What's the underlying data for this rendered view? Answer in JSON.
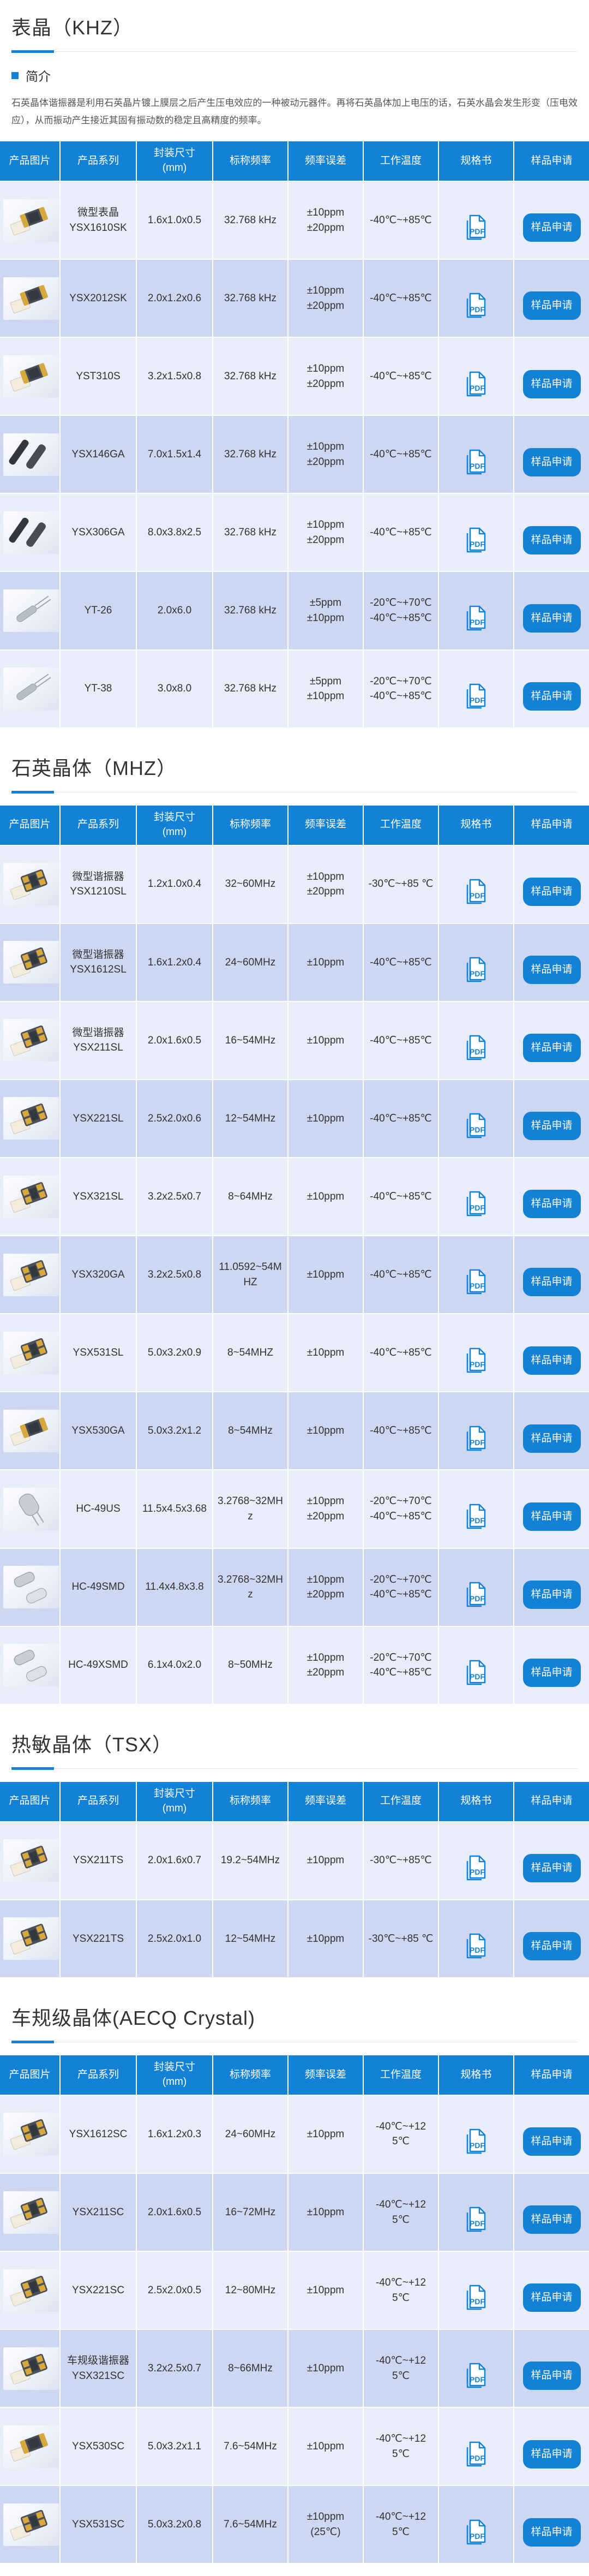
{
  "theme": {
    "accent": "#1381d6",
    "row_light": "#e9edf9",
    "row_dark": "#cdd7f1",
    "header_text_color": "#ffffff"
  },
  "pdf_label": "PDF",
  "sample_button_label": "样品申请",
  "table_headers": [
    "产品图片",
    "产品系列",
    "封装尺寸\n(mm)",
    "标称频率",
    "频率误差",
    "工作温度",
    "规格书",
    "样品申请"
  ],
  "sections": [
    {
      "title": "表晶（KHZ）",
      "intro": {
        "label": "简介",
        "text": "石英晶体谐振器是利用石英晶片镀上膜层之后产生压电效应的一种被动元器件。再将石英晶体加上电压的话，石英水晶会发生形变（压电效应），从而振动产生接近其固有振动数的稳定且高精度的频率。"
      },
      "rows": [
        {
          "photo": "smd2",
          "series": "微型表晶\nYSX1610SK",
          "size": "1.6x1.0x0.5",
          "freq": "32.768 kHz",
          "tol": "±10ppm\n±20ppm",
          "temp": "-40℃~+85℃"
        },
        {
          "photo": "smd2",
          "series": "YSX2012SK",
          "size": "2.0x1.2x0.6",
          "freq": "32.768 kHz",
          "tol": "±10ppm\n±20ppm",
          "temp": "-40℃~+85℃"
        },
        {
          "photo": "smd2",
          "series": "YST310S",
          "size": "3.2x1.5x0.8",
          "freq": "32.768 kHz",
          "tol": "±10ppm\n±20ppm",
          "temp": "-40℃~+85℃"
        },
        {
          "photo": "bars",
          "series": "YSX146GA",
          "size": "7.0x1.5x1.4",
          "freq": "32.768 kHz",
          "tol": "±10ppm\n±20ppm",
          "temp": "-40℃~+85℃"
        },
        {
          "photo": "bars",
          "series": "YSX306GA",
          "size": "8.0x3.8x2.5",
          "freq": "32.768 kHz",
          "tol": "±10ppm\n±20ppm",
          "temp": "-40℃~+85℃"
        },
        {
          "photo": "cyl",
          "series": "YT-26",
          "size": "2.0x6.0",
          "freq": "32.768 kHz",
          "tol": "±5ppm\n±10ppm",
          "temp": "-20℃~+70℃\n-40℃~+85℃"
        },
        {
          "photo": "cyl",
          "series": "YT-38",
          "size": "3.0x8.0",
          "freq": "32.768 kHz",
          "tol": "±5ppm\n±10ppm",
          "temp": "-20℃~+70℃\n-40℃~+85℃"
        }
      ]
    },
    {
      "title": "石英晶体（MHZ）",
      "rows": [
        {
          "photo": "smd4",
          "series": "微型谐振器\nYSX1210SL",
          "size": "1.2x1.0x0.4",
          "freq": "32~60MHz",
          "tol": "±10ppm\n±20ppm",
          "temp": "-30℃~+85 ℃"
        },
        {
          "photo": "smd4",
          "series": "微型谐振器\nYSX1612SL",
          "size": "1.6x1.2x0.4",
          "freq": "24~60MHz",
          "tol": "±10ppm",
          "temp": "-40℃~+85℃"
        },
        {
          "photo": "smd4",
          "series": "微型谐振器\nYSX211SL",
          "size": "2.0x1.6x0.5",
          "freq": "16~54MHz",
          "tol": "±10ppm",
          "temp": "-40℃~+85℃"
        },
        {
          "photo": "smd4",
          "series": "YSX221SL",
          "size": "2.5x2.0x0.6",
          "freq": "12~54MHz",
          "tol": "±10ppm",
          "temp": "-40℃~+85℃"
        },
        {
          "photo": "smd4",
          "series": "YSX321SL",
          "size": "3.2x2.5x0.7",
          "freq": "8~64MHz",
          "tol": "±10ppm",
          "temp": "-40℃~+85℃"
        },
        {
          "photo": "smd4",
          "series": "YSX320GA",
          "size": "3.2x2.5x0.8",
          "freq": "11.0592~54MHZ",
          "tol": "±10ppm",
          "temp": "-40℃~+85℃"
        },
        {
          "photo": "smd4",
          "series": "YSX531SL",
          "size": "5.0x3.2x0.9",
          "freq": "8~54MHZ",
          "tol": "±10ppm",
          "temp": "-40℃~+85℃"
        },
        {
          "photo": "smd2",
          "series": "YSX530GA",
          "size": "5.0x3.2x1.2",
          "freq": "8~54MHz",
          "tol": "±10ppm",
          "temp": "-40℃~+85℃"
        },
        {
          "photo": "can",
          "series": "HC-49US",
          "size": "11.5x4.5x3.68",
          "freq": "3.2768~32MHz",
          "tol": "±10ppm\n±20ppm",
          "temp": "-20℃~+70℃\n-40℃~+85℃"
        },
        {
          "photo": "can-smd",
          "series": "HC-49SMD",
          "size": "11.4x4.8x3.8",
          "freq": "3.2768~32MHz",
          "tol": "±10ppm\n±20ppm",
          "temp": "-20℃~+70℃\n-40℃~+85℃"
        },
        {
          "photo": "can-smd",
          "series": "HC-49XSMD",
          "size": "6.1x4.0x2.0",
          "freq": "8~50MHz",
          "tol": "±10ppm\n±20ppm",
          "temp": "-20℃~+70℃\n-40℃~+85℃"
        }
      ]
    },
    {
      "title": "热敏晶体（TSX）",
      "rows": [
        {
          "photo": "smd4",
          "series": "YSX211TS",
          "size": "2.0x1.6x0.7",
          "freq": "19.2~54MHz",
          "tol": "±10ppm",
          "temp": "-30℃~+85℃"
        },
        {
          "photo": "smd4",
          "series": "YSX221TS",
          "size": "2.5x2.0x1.0",
          "freq": "12~54MHz",
          "tol": "±10ppm",
          "temp": "-30℃~+85 ℃"
        }
      ]
    },
    {
      "title": "车规级晶体(AECQ Crystal)",
      "rows": [
        {
          "photo": "smd4",
          "series": "YSX1612SC",
          "size": "1.6x1.2x0.3",
          "freq": "24~60MHz",
          "tol": "±10ppm",
          "temp": "-40℃~+125℃"
        },
        {
          "photo": "smd4",
          "series": "YSX211SC",
          "size": "2.0x1.6x0.5",
          "freq": "16~72MHz",
          "tol": "±10ppm",
          "temp": "-40℃~+125℃"
        },
        {
          "photo": "smd4",
          "series": "YSX221SC",
          "size": "2.5x2.0x0.5",
          "freq": "12~80MHz",
          "tol": "±10ppm",
          "temp": "-40℃~+125℃"
        },
        {
          "photo": "smd4",
          "series": "车规级谐振器\nYSX321SC",
          "size": "3.2x2.5x0.7",
          "freq": "8~66MHz",
          "tol": "±10ppm",
          "temp": "-40℃~+125℃"
        },
        {
          "photo": "smd2",
          "series": "YSX530SC",
          "size": "5.0x3.2x1.1",
          "freq": "7.6~54MHz",
          "tol": "±10ppm",
          "temp": "-40℃~+125℃"
        },
        {
          "photo": "smd4",
          "series": "YSX531SC",
          "size": "5.0x3.2x0.8",
          "freq": "7.6~54MHz",
          "tol": "±10ppm\n(25℃)",
          "temp": "-40℃~+125℃"
        }
      ]
    }
  ]
}
